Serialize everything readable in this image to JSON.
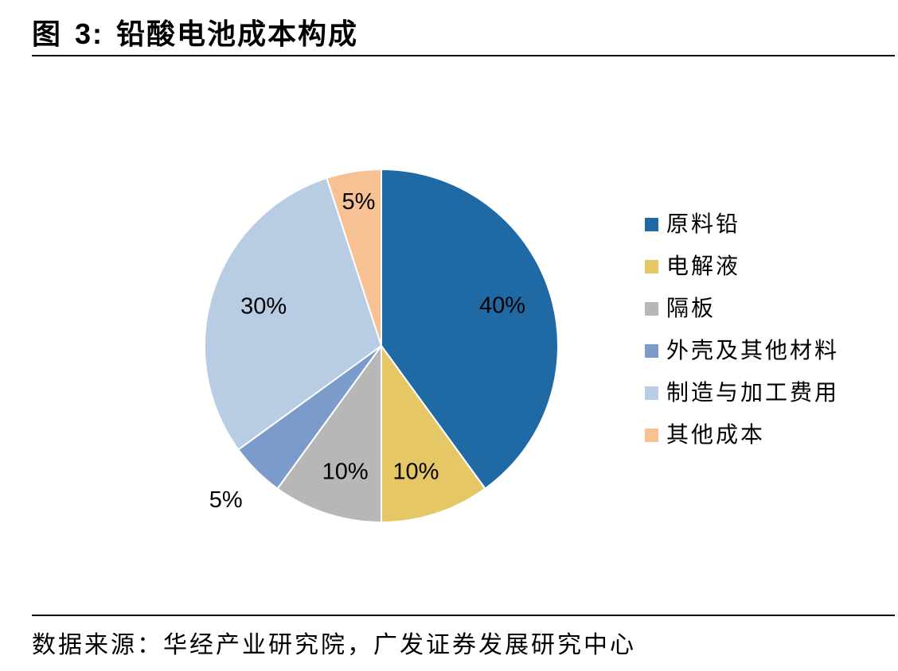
{
  "figure": {
    "label": "图",
    "number": "3:",
    "title": "铅酸电池成本构成"
  },
  "source_note": "数据来源：华经产业研究院，广发证券发展研究中心",
  "chart_data": {
    "type": "pie",
    "title": "铅酸电池成本构成",
    "unit": "%",
    "legend_position": "right",
    "categories": [
      "原料铅",
      "电解液",
      "隔板",
      "外壳及其他材料",
      "制造与加工费用",
      "其他成本"
    ],
    "values": [
      40,
      10,
      10,
      5,
      30,
      5
    ],
    "labels": [
      "40%",
      "10%",
      "10%",
      "5%",
      "30%",
      "5%"
    ],
    "colors": [
      "#1F6AA5",
      "#E5C865",
      "#B7B7B7",
      "#7B9BCB",
      "#B8CCE4",
      "#F8C194"
    ],
    "start_angle": "12 o'clock",
    "direction": "clockwise"
  }
}
